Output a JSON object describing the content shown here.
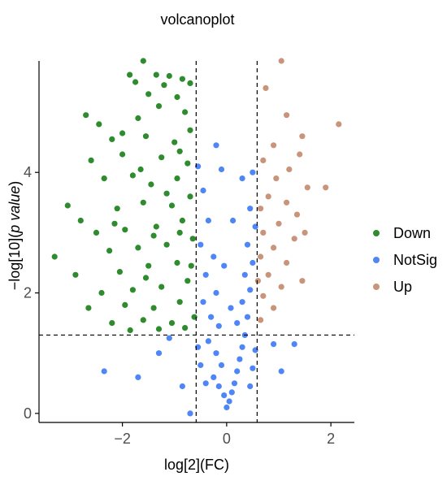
{
  "chart_data": {
    "type": "scatter",
    "title": "volcanoplot",
    "xlabel": "log[2](FC)",
    "ylabel_prefix": "−log[10](",
    "ylabel_italic": "p value",
    "ylabel_suffix": ")",
    "xlim": [
      -3.6,
      2.45
    ],
    "ylim": [
      -0.15,
      5.85
    ],
    "x_ticks": [
      -2,
      0,
      2
    ],
    "x_tick_labels": [
      "−2",
      "0",
      "2"
    ],
    "y_ticks": [
      0,
      2,
      4
    ],
    "y_tick_labels": [
      "0",
      "2",
      "4"
    ],
    "thresholds": {
      "fc_low": -0.585,
      "fc_high": 0.585,
      "p_line": 1.3
    },
    "grid": false,
    "legend": {
      "placement": "right",
      "entries": [
        {
          "label": "Down",
          "color": "#2e8b2e"
        },
        {
          "label": "NotSig",
          "color": "#4f86f7"
        },
        {
          "label": "Up",
          "color": "#c8957a"
        }
      ]
    },
    "series": [
      {
        "name": "Down",
        "color": "#2e8b2e",
        "points": [
          [
            -1.6,
            5.85
          ],
          [
            -1.86,
            5.62
          ],
          [
            -1.35,
            5.62
          ],
          [
            -1.1,
            5.6
          ],
          [
            -0.85,
            5.55
          ],
          [
            -1.75,
            5.5
          ],
          [
            -1.2,
            5.45
          ],
          [
            -0.7,
            5.48
          ],
          [
            -1.5,
            5.3
          ],
          [
            -0.95,
            5.25
          ],
          [
            -2.7,
            4.95
          ],
          [
            -1.3,
            5.1
          ],
          [
            -0.8,
            5.0
          ],
          [
            -2.45,
            4.8
          ],
          [
            -1.7,
            4.9
          ],
          [
            -2.2,
            4.55
          ],
          [
            -1.55,
            4.6
          ],
          [
            -1.0,
            4.5
          ],
          [
            -0.7,
            4.7
          ],
          [
            -2.6,
            4.2
          ],
          [
            -2.0,
            4.3
          ],
          [
            -1.25,
            4.25
          ],
          [
            -0.75,
            4.15
          ],
          [
            -3.05,
            3.45
          ],
          [
            -2.35,
            3.9
          ],
          [
            -1.8,
            3.95
          ],
          [
            -1.45,
            3.8
          ],
          [
            -0.95,
            3.9
          ],
          [
            -2.8,
            3.2
          ],
          [
            -2.1,
            3.4
          ],
          [
            -1.6,
            3.5
          ],
          [
            -1.05,
            3.45
          ],
          [
            -0.7,
            3.6
          ],
          [
            -3.3,
            2.6
          ],
          [
            -2.5,
            3.0
          ],
          [
            -1.95,
            3.05
          ],
          [
            -1.35,
            3.1
          ],
          [
            -0.85,
            3.2
          ],
          [
            -2.25,
            2.7
          ],
          [
            -1.7,
            2.75
          ],
          [
            -1.15,
            2.8
          ],
          [
            -0.65,
            2.9
          ],
          [
            -2.9,
            2.3
          ],
          [
            -2.05,
            2.35
          ],
          [
            -1.5,
            2.45
          ],
          [
            -0.95,
            2.5
          ],
          [
            -2.4,
            2.0
          ],
          [
            -1.8,
            2.05
          ],
          [
            -1.25,
            2.1
          ],
          [
            -0.75,
            2.2
          ],
          [
            -2.65,
            1.75
          ],
          [
            -1.95,
            1.8
          ],
          [
            -1.4,
            1.75
          ],
          [
            -0.9,
            1.85
          ],
          [
            -0.62,
            1.6
          ],
          [
            -2.2,
            1.5
          ],
          [
            -1.6,
            1.55
          ],
          [
            -1.05,
            1.5
          ],
          [
            -1.85,
            1.38
          ],
          [
            -1.3,
            1.4
          ],
          [
            -0.8,
            1.42
          ],
          [
            -0.68,
            2.45
          ],
          [
            -1.15,
            3.65
          ],
          [
            -1.65,
            4.05
          ],
          [
            -0.9,
            4.35
          ],
          [
            -1.4,
            2.95
          ],
          [
            -2.15,
            3.15
          ],
          [
            -0.9,
            3.0
          ],
          [
            -1.55,
            2.25
          ],
          [
            -2.0,
            4.65
          ]
        ]
      },
      {
        "name": "NotSig",
        "color": "#4f86f7",
        "points": [
          [
            -0.55,
            4.1
          ],
          [
            -0.45,
            3.7
          ],
          [
            -0.35,
            3.2
          ],
          [
            -0.5,
            2.8
          ],
          [
            -0.25,
            2.6
          ],
          [
            -0.4,
            2.3
          ],
          [
            -0.2,
            2.0
          ],
          [
            -0.45,
            1.85
          ],
          [
            -0.3,
            1.6
          ],
          [
            -0.15,
            1.45
          ],
          [
            -0.35,
            1.2
          ],
          [
            -0.2,
            1.0
          ],
          [
            -0.1,
            0.8
          ],
          [
            -0.25,
            0.6
          ],
          [
            -0.15,
            0.45
          ],
          [
            -0.05,
            0.3
          ],
          [
            0.0,
            0.1
          ],
          [
            0.05,
            0.2
          ],
          [
            0.1,
            0.35
          ],
          [
            0.15,
            0.5
          ],
          [
            0.2,
            0.7
          ],
          [
            0.25,
            0.9
          ],
          [
            0.3,
            1.1
          ],
          [
            0.35,
            1.3
          ],
          [
            0.2,
            1.5
          ],
          [
            0.4,
            1.6
          ],
          [
            0.3,
            1.85
          ],
          [
            0.45,
            2.05
          ],
          [
            0.35,
            2.3
          ],
          [
            0.5,
            2.5
          ],
          [
            0.4,
            2.8
          ],
          [
            0.55,
            3.1
          ],
          [
            0.45,
            3.4
          ],
          [
            0.3,
            3.9
          ],
          [
            0.5,
            4.0
          ],
          [
            -0.55,
            1.1
          ],
          [
            -0.5,
            0.8
          ],
          [
            -0.4,
            0.5
          ],
          [
            0.55,
            1.05
          ],
          [
            0.5,
            0.75
          ],
          [
            0.45,
            0.45
          ],
          [
            -1.7,
            0.6
          ],
          [
            -2.35,
            0.7
          ],
          [
            -1.1,
            1.25
          ],
          [
            -0.85,
            0.45
          ],
          [
            -1.3,
            1.0
          ],
          [
            1.05,
            0.7
          ],
          [
            0.9,
            1.15
          ],
          [
            1.3,
            1.15
          ],
          [
            -0.7,
            0.0
          ],
          [
            -0.2,
            4.45
          ],
          [
            -0.1,
            4.05
          ],
          [
            0.12,
            3.2
          ],
          [
            -0.05,
            2.45
          ],
          [
            0.08,
            1.75
          ]
        ]
      },
      {
        "name": "Up",
        "color": "#c8957a",
        "points": [
          [
            1.05,
            5.85
          ],
          [
            0.75,
            5.4
          ],
          [
            1.15,
            4.95
          ],
          [
            2.15,
            4.8
          ],
          [
            1.45,
            4.6
          ],
          [
            0.9,
            4.45
          ],
          [
            1.4,
            4.3
          ],
          [
            0.7,
            4.2
          ],
          [
            1.2,
            4.05
          ],
          [
            0.95,
            3.9
          ],
          [
            1.9,
            3.75
          ],
          [
            1.55,
            3.75
          ],
          [
            0.8,
            3.6
          ],
          [
            1.15,
            3.5
          ],
          [
            0.65,
            3.4
          ],
          [
            1.35,
            3.3
          ],
          [
            1.0,
            3.15
          ],
          [
            0.7,
            3.0
          ],
          [
            1.3,
            2.9
          ],
          [
            0.9,
            2.75
          ],
          [
            0.65,
            2.6
          ],
          [
            1.15,
            2.5
          ],
          [
            0.8,
            2.3
          ],
          [
            1.05,
            2.1
          ],
          [
            0.7,
            1.95
          ],
          [
            0.9,
            1.75
          ],
          [
            0.65,
            1.55
          ],
          [
            1.45,
            2.2
          ],
          [
            1.5,
            3.0
          ],
          [
            0.6,
            2.2
          ]
        ]
      }
    ]
  }
}
